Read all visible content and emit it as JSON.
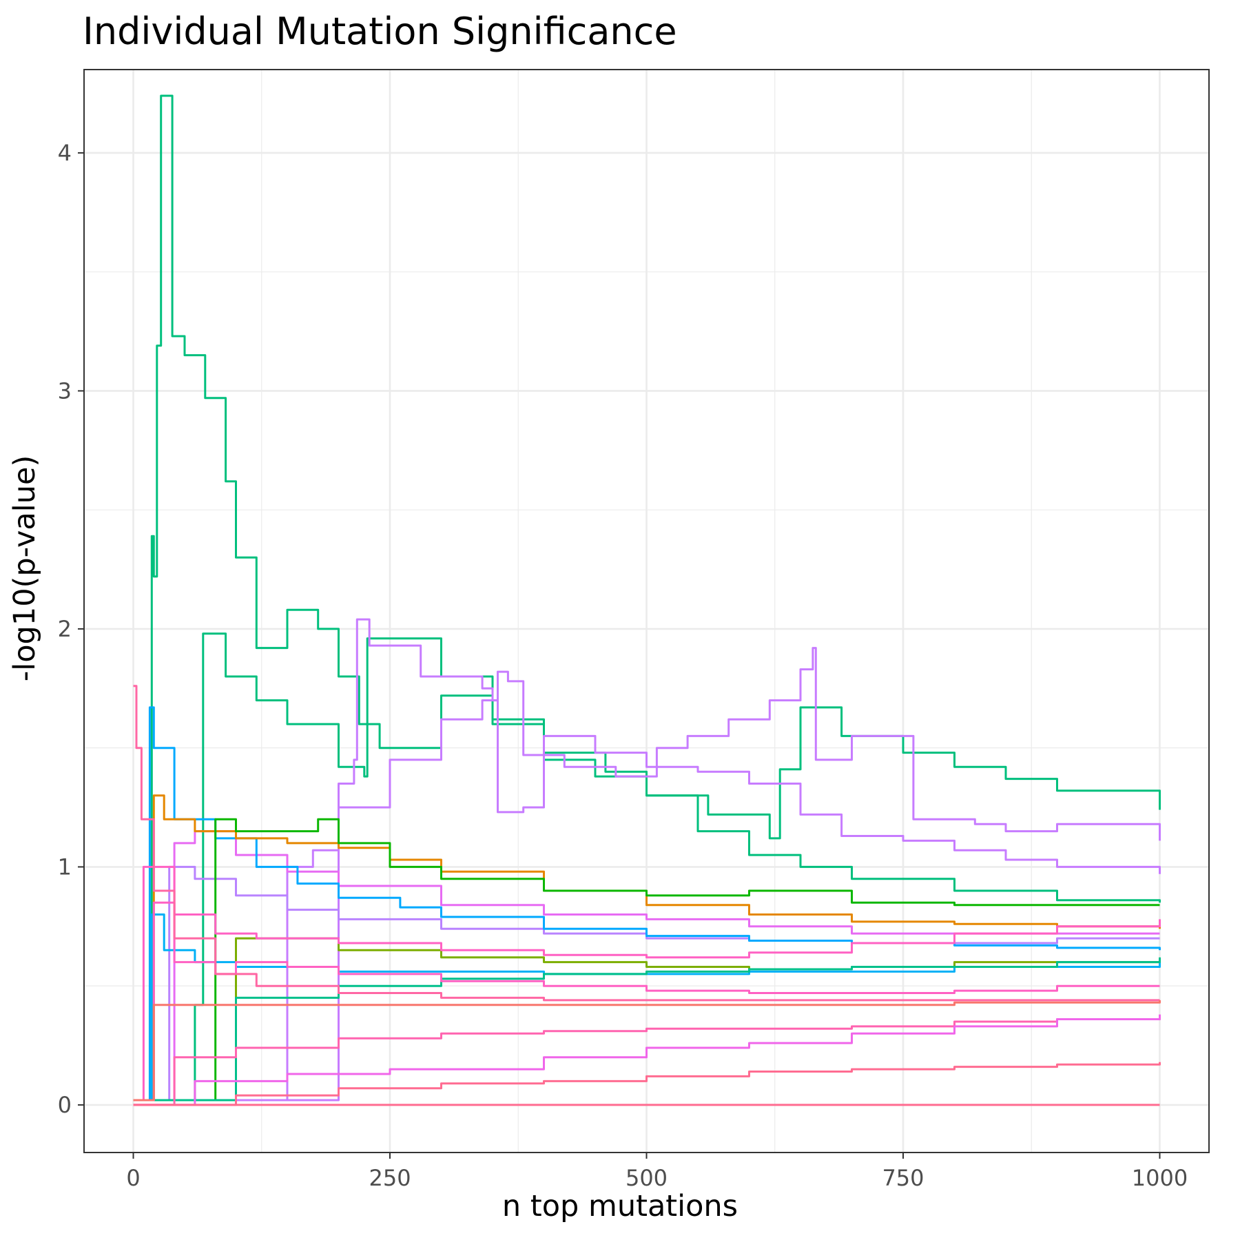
{
  "chart_data": {
    "type": "line",
    "title": "Individual Mutation Significance",
    "xlabel": "n top mutations",
    "ylabel": "-log10(p-value)",
    "xlim": [
      -48,
      1048
    ],
    "ylim": [
      -0.2,
      4.35
    ],
    "x_ticks": [
      0,
      250,
      500,
      750,
      1000
    ],
    "x_tick_labels": [
      "0",
      "250",
      "500",
      "750",
      "1000"
    ],
    "y_ticks": [
      0,
      1,
      2,
      3,
      4
    ],
    "y_tick_labels": [
      "0",
      "1",
      "2",
      "3",
      "4"
    ],
    "grid": true,
    "legend": "none",
    "series": [
      {
        "color": "#00BF7D",
        "points": [
          [
            0,
            0.02
          ],
          [
            18,
            2.39
          ],
          [
            20,
            2.22
          ],
          [
            23,
            3.19
          ],
          [
            27,
            4.24
          ],
          [
            30,
            4.24
          ],
          [
            38,
            3.23
          ],
          [
            50,
            3.15
          ],
          [
            70,
            2.97
          ],
          [
            90,
            2.62
          ],
          [
            100,
            2.3
          ],
          [
            120,
            1.92
          ],
          [
            150,
            2.08
          ],
          [
            180,
            2.0
          ],
          [
            200,
            1.8
          ],
          [
            220,
            1.6
          ],
          [
            240,
            1.5
          ],
          [
            300,
            1.72
          ],
          [
            350,
            1.6
          ],
          [
            400,
            1.45
          ],
          [
            450,
            1.38
          ],
          [
            500,
            1.3
          ],
          [
            550,
            1.15
          ],
          [
            600,
            1.05
          ],
          [
            650,
            1.0
          ],
          [
            700,
            0.95
          ],
          [
            800,
            0.9
          ],
          [
            900,
            0.86
          ],
          [
            1000,
            0.85
          ]
        ]
      },
      {
        "color": "#00BF7D",
        "points": [
          [
            0,
            0.02
          ],
          [
            60,
            0.42
          ],
          [
            68,
            1.98
          ],
          [
            90,
            1.8
          ],
          [
            120,
            1.7
          ],
          [
            150,
            1.6
          ],
          [
            200,
            1.42
          ],
          [
            225,
            1.38
          ],
          [
            228,
            1.96
          ],
          [
            300,
            1.8
          ],
          [
            350,
            1.62
          ],
          [
            400,
            1.48
          ],
          [
            460,
            1.4
          ],
          [
            500,
            1.3
          ],
          [
            560,
            1.22
          ],
          [
            620,
            1.12
          ],
          [
            630,
            1.41
          ],
          [
            650,
            1.67
          ],
          [
            690,
            1.55
          ],
          [
            750,
            1.48
          ],
          [
            800,
            1.42
          ],
          [
            850,
            1.37
          ],
          [
            900,
            1.32
          ],
          [
            1000,
            1.24
          ]
        ]
      },
      {
        "color": "#C77CFF",
        "points": [
          [
            0,
            0.02
          ],
          [
            200,
            1.35
          ],
          [
            215,
            1.45
          ],
          [
            218,
            2.04
          ],
          [
            230,
            1.93
          ],
          [
            280,
            1.8
          ],
          [
            340,
            1.75
          ],
          [
            350,
            1.7
          ],
          [
            355,
            1.23
          ],
          [
            380,
            1.25
          ],
          [
            400,
            1.55
          ],
          [
            450,
            1.48
          ],
          [
            500,
            1.42
          ],
          [
            550,
            1.4
          ],
          [
            600,
            1.35
          ],
          [
            650,
            1.22
          ],
          [
            690,
            1.13
          ],
          [
            750,
            1.11
          ],
          [
            800,
            1.07
          ],
          [
            850,
            1.03
          ],
          [
            900,
            1.0
          ],
          [
            1000,
            0.97
          ]
        ]
      },
      {
        "color": "#C77CFF",
        "points": [
          [
            0,
            0.02
          ],
          [
            150,
            1.0
          ],
          [
            175,
            1.07
          ],
          [
            200,
            1.25
          ],
          [
            250,
            1.45
          ],
          [
            300,
            1.62
          ],
          [
            340,
            1.7
          ],
          [
            355,
            1.82
          ],
          [
            365,
            1.78
          ],
          [
            380,
            1.47
          ],
          [
            420,
            1.42
          ],
          [
            470,
            1.38
          ],
          [
            510,
            1.5
          ],
          [
            540,
            1.55
          ],
          [
            580,
            1.62
          ],
          [
            620,
            1.7
          ],
          [
            650,
            1.83
          ],
          [
            662,
            1.92
          ],
          [
            665,
            1.45
          ],
          [
            700,
            1.55
          ],
          [
            760,
            1.2
          ],
          [
            820,
            1.18
          ],
          [
            850,
            1.15
          ],
          [
            900,
            1.18
          ],
          [
            1000,
            1.11
          ]
        ]
      },
      {
        "color": "#E76BF3",
        "points": [
          [
            0,
            0.02
          ],
          [
            40,
            1.1
          ],
          [
            60,
            1.15
          ],
          [
            100,
            1.05
          ],
          [
            150,
            0.98
          ],
          [
            200,
            0.92
          ],
          [
            300,
            0.84
          ],
          [
            400,
            0.8
          ],
          [
            500,
            0.78
          ],
          [
            600,
            0.75
          ],
          [
            700,
            0.72
          ],
          [
            800,
            0.72
          ],
          [
            900,
            0.72
          ],
          [
            1000,
            0.72
          ]
        ]
      },
      {
        "color": "#B983FF",
        "points": [
          [
            0,
            0.02
          ],
          [
            35,
            1.0
          ],
          [
            60,
            0.95
          ],
          [
            100,
            0.88
          ],
          [
            150,
            0.82
          ],
          [
            200,
            0.78
          ],
          [
            300,
            0.74
          ],
          [
            400,
            0.72
          ],
          [
            500,
            0.7
          ],
          [
            600,
            0.69
          ],
          [
            700,
            0.68
          ],
          [
            800,
            0.68
          ],
          [
            900,
            0.7
          ],
          [
            1000,
            0.7
          ]
        ]
      },
      {
        "color": "#00A9FF",
        "points": [
          [
            0,
            0.02
          ],
          [
            16,
            1.67
          ],
          [
            20,
            1.5
          ],
          [
            40,
            1.2
          ],
          [
            80,
            1.12
          ],
          [
            120,
            1.0
          ],
          [
            160,
            0.93
          ],
          [
            200,
            0.87
          ],
          [
            260,
            0.83
          ],
          [
            300,
            0.79
          ],
          [
            400,
            0.74
          ],
          [
            500,
            0.71
          ],
          [
            600,
            0.69
          ],
          [
            700,
            0.68
          ],
          [
            800,
            0.67
          ],
          [
            900,
            0.66
          ],
          [
            1000,
            0.65
          ]
        ]
      },
      {
        "color": "#00B0F6",
        "points": [
          [
            0,
            0.02
          ],
          [
            18,
            0.8
          ],
          [
            30,
            0.65
          ],
          [
            60,
            0.6
          ],
          [
            100,
            0.58
          ],
          [
            200,
            0.56
          ],
          [
            400,
            0.55
          ],
          [
            600,
            0.56
          ],
          [
            800,
            0.58
          ],
          [
            1000,
            0.6
          ]
        ]
      },
      {
        "color": "#E58700",
        "points": [
          [
            0,
            0.02
          ],
          [
            20,
            1.3
          ],
          [
            30,
            1.2
          ],
          [
            60,
            1.15
          ],
          [
            100,
            1.12
          ],
          [
            150,
            1.1
          ],
          [
            200,
            1.08
          ],
          [
            250,
            1.03
          ],
          [
            300,
            0.98
          ],
          [
            400,
            0.9
          ],
          [
            500,
            0.84
          ],
          [
            600,
            0.8
          ],
          [
            700,
            0.77
          ],
          [
            800,
            0.76
          ],
          [
            900,
            0.75
          ],
          [
            1000,
            0.74
          ]
        ]
      },
      {
        "color": "#7CAE00",
        "points": [
          [
            0,
            0.02
          ],
          [
            100,
            0.7
          ],
          [
            200,
            0.65
          ],
          [
            300,
            0.62
          ],
          [
            400,
            0.6
          ],
          [
            500,
            0.58
          ],
          [
            600,
            0.57
          ],
          [
            700,
            0.58
          ],
          [
            800,
            0.6
          ],
          [
            900,
            0.6
          ],
          [
            1000,
            0.6
          ]
        ]
      },
      {
        "color": "#0CB702",
        "points": [
          [
            0,
            0.02
          ],
          [
            80,
            1.2
          ],
          [
            100,
            1.15
          ],
          [
            180,
            1.2
          ],
          [
            200,
            1.1
          ],
          [
            250,
            1.0
          ],
          [
            300,
            0.95
          ],
          [
            400,
            0.9
          ],
          [
            500,
            0.88
          ],
          [
            600,
            0.9
          ],
          [
            700,
            0.85
          ],
          [
            800,
            0.84
          ],
          [
            900,
            0.84
          ],
          [
            1000,
            0.84
          ]
        ]
      },
      {
        "color": "#00C08B",
        "points": [
          [
            0,
            0.02
          ],
          [
            100,
            0.45
          ],
          [
            200,
            0.5
          ],
          [
            300,
            0.53
          ],
          [
            400,
            0.55
          ],
          [
            500,
            0.56
          ],
          [
            600,
            0.57
          ],
          [
            700,
            0.58
          ],
          [
            800,
            0.58
          ],
          [
            900,
            0.6
          ],
          [
            1000,
            0.62
          ]
        ]
      },
      {
        "color": "#FF61C3",
        "points": [
          [
            0,
            0.02
          ],
          [
            10,
            1.0
          ],
          [
            40,
            0.8
          ],
          [
            80,
            0.72
          ],
          [
            120,
            0.7
          ],
          [
            200,
            0.68
          ],
          [
            300,
            0.65
          ],
          [
            400,
            0.63
          ],
          [
            500,
            0.62
          ],
          [
            600,
            0.64
          ],
          [
            700,
            0.68
          ],
          [
            800,
            0.72
          ],
          [
            900,
            0.75
          ],
          [
            1000,
            0.78
          ]
        ]
      },
      {
        "color": "#FF61C3",
        "points": [
          [
            0,
            0.02
          ],
          [
            20,
            0.85
          ],
          [
            40,
            0.6
          ],
          [
            80,
            0.55
          ],
          [
            100,
            0.6
          ],
          [
            150,
            0.58
          ],
          [
            200,
            0.55
          ],
          [
            300,
            0.52
          ],
          [
            400,
            0.5
          ],
          [
            500,
            0.48
          ],
          [
            600,
            0.47
          ],
          [
            700,
            0.47
          ],
          [
            800,
            0.48
          ],
          [
            900,
            0.5
          ],
          [
            1000,
            0.5
          ]
        ]
      },
      {
        "color": "#FF67A4",
        "points": [
          [
            0,
            1.76
          ],
          [
            3,
            1.5
          ],
          [
            8,
            1.2
          ],
          [
            20,
            0.9
          ],
          [
            40,
            0.7
          ],
          [
            80,
            0.55
          ],
          [
            120,
            0.5
          ],
          [
            200,
            0.47
          ],
          [
            300,
            0.45
          ],
          [
            400,
            0.44
          ],
          [
            500,
            0.44
          ],
          [
            600,
            0.44
          ],
          [
            700,
            0.44
          ],
          [
            800,
            0.44
          ],
          [
            900,
            0.44
          ],
          [
            1000,
            0.44
          ]
        ]
      },
      {
        "color": "#F8766D",
        "points": [
          [
            0,
            0.02
          ],
          [
            20,
            0.42
          ],
          [
            100,
            0.42
          ],
          [
            200,
            0.42
          ],
          [
            400,
            0.42
          ],
          [
            600,
            0.42
          ],
          [
            800,
            0.43
          ],
          [
            1000,
            0.44
          ]
        ]
      },
      {
        "color": "#FF64B0",
        "points": [
          [
            0,
            0.0
          ],
          [
            40,
            0.2
          ],
          [
            100,
            0.24
          ],
          [
            200,
            0.28
          ],
          [
            300,
            0.3
          ],
          [
            400,
            0.31
          ],
          [
            500,
            0.32
          ],
          [
            600,
            0.32
          ],
          [
            700,
            0.33
          ],
          [
            800,
            0.35
          ],
          [
            900,
            0.36
          ],
          [
            1000,
            0.37
          ]
        ]
      },
      {
        "color": "#F066EA",
        "points": [
          [
            0,
            0.0
          ],
          [
            60,
            0.1
          ],
          [
            150,
            0.13
          ],
          [
            250,
            0.15
          ],
          [
            400,
            0.2
          ],
          [
            500,
            0.24
          ],
          [
            600,
            0.26
          ],
          [
            700,
            0.3
          ],
          [
            800,
            0.33
          ],
          [
            900,
            0.36
          ],
          [
            1000,
            0.38
          ]
        ]
      },
      {
        "color": "#FF6C91",
        "points": [
          [
            0,
            0.0
          ],
          [
            100,
            0.04
          ],
          [
            200,
            0.07
          ],
          [
            300,
            0.09
          ],
          [
            400,
            0.1
          ],
          [
            500,
            0.12
          ],
          [
            600,
            0.14
          ],
          [
            700,
            0.15
          ],
          [
            800,
            0.16
          ],
          [
            900,
            0.17
          ],
          [
            1000,
            0.18
          ]
        ]
      },
      {
        "color": "#FF6C91",
        "points": [
          [
            0,
            0.0
          ],
          [
            1000,
            0.0
          ]
        ]
      }
    ]
  }
}
